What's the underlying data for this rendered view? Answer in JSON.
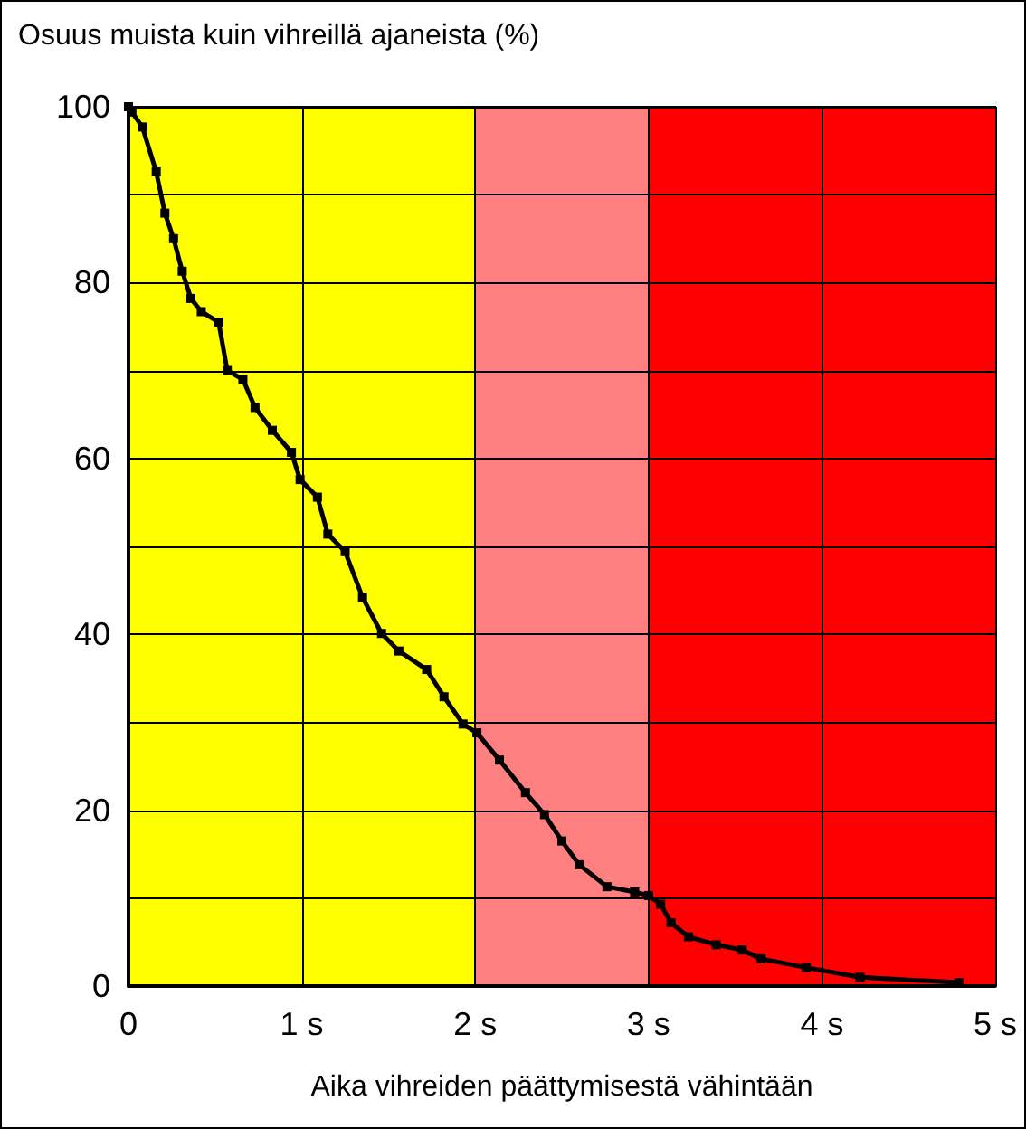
{
  "chart_data": {
    "type": "line",
    "title": "Osuus muista kuin vihreillä ajaneista (%)",
    "xlabel": "Aika vihreiden päättymisestä vähintään",
    "x": [
      0,
      0.02,
      0.08,
      0.16,
      0.21,
      0.26,
      0.31,
      0.36,
      0.42,
      0.52,
      0.57,
      0.66,
      0.73,
      0.83,
      0.94,
      0.99,
      1.09,
      1.15,
      1.25,
      1.35,
      1.46,
      1.56,
      1.72,
      1.82,
      1.93,
      2.01,
      2.14,
      2.29,
      2.4,
      2.5,
      2.6,
      2.76,
      2.92,
      3.0,
      3.07,
      3.13,
      3.23,
      3.39,
      3.54,
      3.65,
      3.91,
      4.22,
      4.79
    ],
    "series": [
      {
        "color": "#000000",
        "values": [
          100,
          99.4,
          97.7,
          92.6,
          87.9,
          85,
          81.3,
          78.2,
          76.7,
          75.5,
          70,
          69,
          65.8,
          63.2,
          60.7,
          57.6,
          55.6,
          51.4,
          49.4,
          44.2,
          40.1,
          38.1,
          36,
          32.9,
          29.8,
          28.8,
          25.7,
          22,
          19.5,
          16.5,
          13.8,
          11.3,
          10.7,
          10.3,
          9.3,
          7.2,
          5.6,
          4.7,
          4.1,
          3.1,
          2.1,
          1.0,
          0.4
        ]
      }
    ],
    "xlim": [
      0,
      5
    ],
    "xticks": [
      {
        "value": 0,
        "label": "0"
      },
      {
        "value": 1,
        "label": "1 s"
      },
      {
        "value": 2,
        "label": "2 s"
      },
      {
        "value": 3,
        "label": "3 s"
      },
      {
        "value": 4,
        "label": "4 s"
      },
      {
        "value": 5,
        "label": "5 s"
      }
    ],
    "ylim": [
      0,
      100
    ],
    "yticks": [
      0,
      {
        "value": 10,
        "label": null
      },
      20,
      {
        "value": 30,
        "label": null
      },
      40,
      {
        "value": 50,
        "label": null
      },
      60,
      {
        "value": 70,
        "label": null
      },
      80,
      {
        "value": 90,
        "label": null
      },
      100
    ],
    "bands": [
      {
        "axis": "x",
        "from": 0,
        "to": 2,
        "color": "#ffff00"
      },
      {
        "axis": "x",
        "from": 2,
        "to": 3,
        "color": "#ff8080"
      },
      {
        "axis": "x",
        "from": 3,
        "to": 5,
        "color": "#ff0000"
      }
    ],
    "grid": true,
    "marker": "square",
    "line_style": "solid"
  }
}
